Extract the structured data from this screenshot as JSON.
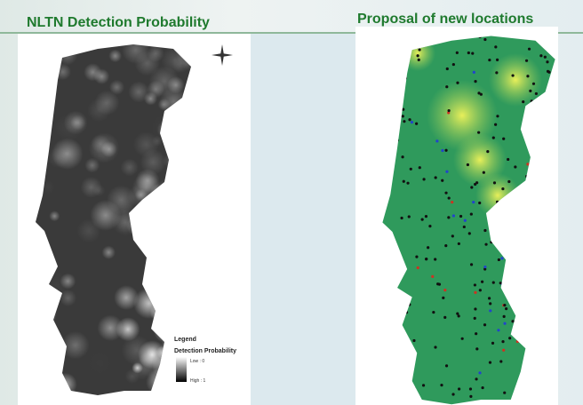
{
  "slide": {
    "left_title": "NLTN Detection Probability",
    "right_title": "Proposal of new locations",
    "legend": {
      "title": "Legend",
      "subtitle": "Detection Probability",
      "low": "Low : 0",
      "high": "High : 1"
    }
  }
}
